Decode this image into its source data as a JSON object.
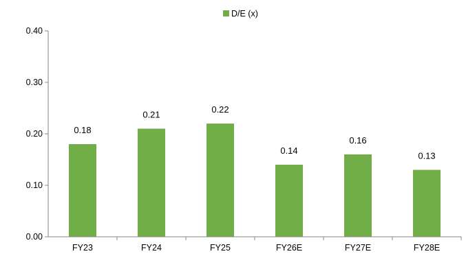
{
  "chart_data": {
    "type": "bar",
    "categories": [
      "FY23",
      "FY24",
      "FY25",
      "FY26E",
      "FY27E",
      "FY28E"
    ],
    "series": [
      {
        "name": "D/E (x)",
        "values": [
          0.18,
          0.21,
          0.22,
          0.14,
          0.16,
          0.13
        ],
        "data_labels": [
          "0.18",
          "0.21",
          "0.22",
          "0.14",
          "0.16",
          "0.13"
        ]
      }
    ],
    "yticks": [
      "0.00",
      "0.10",
      "0.20",
      "0.30",
      "0.40"
    ],
    "ylim": [
      0,
      0.4
    ],
    "grid": false,
    "legend_position": "top",
    "colors": {
      "bar": "#70ad47",
      "axis": "#868686"
    }
  }
}
